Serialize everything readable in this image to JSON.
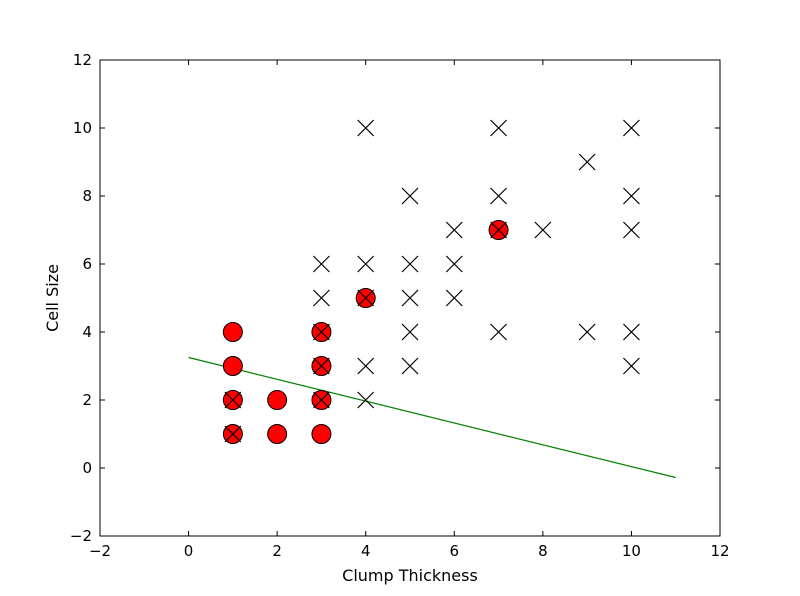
{
  "chart_data": {
    "type": "scatter",
    "title": "",
    "xlabel": "Clump Thickness",
    "ylabel": "Cell Size",
    "xlim": [
      -2,
      12
    ],
    "ylim": [
      -2,
      12
    ],
    "xticks": [
      "−2",
      "0",
      "2",
      "4",
      "6",
      "8",
      "10",
      "12"
    ],
    "yticks": [
      "−2",
      "0",
      "2",
      "4",
      "6",
      "8",
      "10",
      "12"
    ],
    "grid": false,
    "legend": "none",
    "series": [
      {
        "marker": "circle",
        "color": "#ff0000",
        "points": [
          [
            1,
            1
          ],
          [
            1,
            2
          ],
          [
            1,
            3
          ],
          [
            1,
            4
          ],
          [
            2,
            1
          ],
          [
            2,
            2
          ],
          [
            3,
            1
          ],
          [
            3,
            2
          ],
          [
            3,
            3
          ],
          [
            3,
            4
          ],
          [
            4,
            5
          ],
          [
            7,
            7
          ]
        ]
      },
      {
        "marker": "x",
        "color": "#000000",
        "points": [
          [
            1,
            1
          ],
          [
            1,
            2
          ],
          [
            3,
            2
          ],
          [
            3,
            3
          ],
          [
            3,
            4
          ],
          [
            3,
            5
          ],
          [
            3,
            6
          ],
          [
            4,
            2
          ],
          [
            4,
            3
          ],
          [
            4,
            5
          ],
          [
            4,
            6
          ],
          [
            4,
            10
          ],
          [
            5,
            3
          ],
          [
            5,
            4
          ],
          [
            5,
            5
          ],
          [
            5,
            6
          ],
          [
            5,
            8
          ],
          [
            6,
            5
          ],
          [
            6,
            6
          ],
          [
            6,
            7
          ],
          [
            7,
            4
          ],
          [
            7,
            7
          ],
          [
            7,
            8
          ],
          [
            7,
            10
          ],
          [
            8,
            7
          ],
          [
            9,
            4
          ],
          [
            9,
            9
          ],
          [
            10,
            3
          ],
          [
            10,
            4
          ],
          [
            10,
            7
          ],
          [
            10,
            8
          ],
          [
            10,
            10
          ]
        ]
      }
    ],
    "line": {
      "color": "#008000",
      "x": [
        0,
        11
      ],
      "y": [
        3.25,
        -0.28
      ]
    }
  }
}
